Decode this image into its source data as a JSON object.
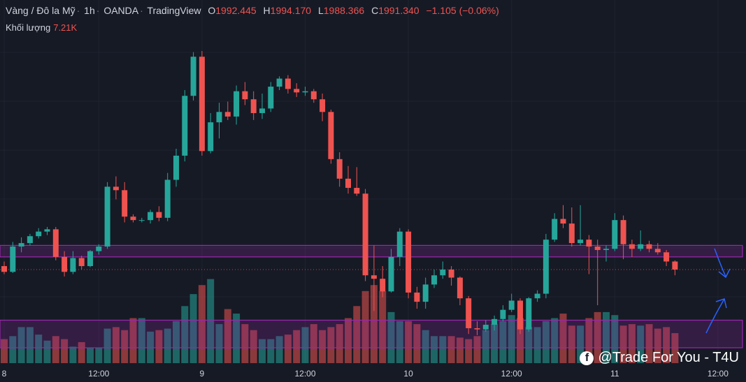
{
  "header": {
    "symbol": "Vàng / Đô la Mỹ",
    "interval": "1h",
    "broker": "OANDA",
    "source": "TradingView",
    "open_label": "O",
    "open": "1992.445",
    "high_label": "H",
    "high": "1994.170",
    "low_label": "L",
    "low": "1988.366",
    "close_label": "C",
    "close": "1991.340",
    "change": "−1.105 (−0.06%)"
  },
  "volume": {
    "label": "Khối lượng",
    "value": "7.21K"
  },
  "watermark": {
    "text": "@Trade For You - T4U",
    "icon": "facebook-icon"
  },
  "colors": {
    "up": "#26a69a",
    "down": "#ef5350",
    "zone": "#9c27b0",
    "arrow": "#2962ff",
    "background": "#161a25"
  },
  "chart_data": {
    "type": "candlestick",
    "x_tick_labels": [
      "8",
      "12:00",
      "9",
      "12:00",
      "10",
      "12:00",
      "11",
      "12:00"
    ],
    "x_tick_index": [
      0,
      11,
      23,
      35,
      47,
      59,
      71,
      83
    ],
    "ohlc": [
      [
        1991.6,
        1992.0,
        1990.9,
        1991.1
      ],
      [
        1991.1,
        1993.7,
        1991.0,
        1993.3
      ],
      [
        1993.3,
        1994.1,
        1992.8,
        1993.6
      ],
      [
        1993.6,
        1994.4,
        1993.4,
        1994.2
      ],
      [
        1994.2,
        1994.9,
        1994.0,
        1994.6
      ],
      [
        1994.6,
        1995.0,
        1994.3,
        1994.8
      ],
      [
        1994.8,
        1995.0,
        1992.1,
        1992.4
      ],
      [
        1992.4,
        1992.9,
        1990.7,
        1991.1
      ],
      [
        1991.1,
        1992.9,
        1990.9,
        1992.3
      ],
      [
        1992.3,
        1992.5,
        1991.3,
        1991.6
      ],
      [
        1991.6,
        1993.0,
        1991.5,
        1992.9
      ],
      [
        1992.9,
        1993.5,
        1992.6,
        1993.3
      ],
      [
        1993.3,
        1998.9,
        1993.1,
        1998.5
      ],
      [
        1998.5,
        1999.4,
        1997.4,
        1998.2
      ],
      [
        1998.2,
        1998.9,
        1995.4,
        1995.9
      ],
      [
        1995.9,
        1996.1,
        1995.4,
        1995.6
      ],
      [
        1995.6,
        1995.8,
        1995.4,
        1995.6
      ],
      [
        1995.6,
        1996.5,
        1995.3,
        1996.3
      ],
      [
        1996.3,
        1996.8,
        1995.5,
        1995.8
      ],
      [
        1995.8,
        1999.7,
        1995.5,
        1999.1
      ],
      [
        1999.1,
        2001.8,
        1998.5,
        2001.2
      ],
      [
        2001.2,
        2006.9,
        2000.7,
        2006.4
      ],
      [
        2006.4,
        2010.2,
        2006.0,
        2009.8
      ],
      [
        2009.8,
        2010.3,
        2001.2,
        2001.6
      ],
      [
        2001.6,
        2004.9,
        2001.4,
        2004.1
      ],
      [
        2004.1,
        2005.8,
        2002.7,
        2005.0
      ],
      [
        2005.0,
        2005.9,
        2004.3,
        2004.6
      ],
      [
        2004.6,
        2007.3,
        2003.9,
        2006.8
      ],
      [
        2006.8,
        2007.6,
        2005.6,
        2006.1
      ],
      [
        2006.1,
        2006.8,
        2004.3,
        2004.9
      ],
      [
        2004.9,
        2006.6,
        2004.4,
        2005.3
      ],
      [
        2005.3,
        2007.6,
        2005.0,
        2007.2
      ],
      [
        2007.2,
        2008.1,
        2006.9,
        2007.9
      ],
      [
        2007.9,
        2008.2,
        2006.6,
        2007.0
      ],
      [
        2007.0,
        2007.5,
        2006.3,
        2006.7
      ],
      [
        2006.7,
        2007.2,
        2006.4,
        2006.8
      ],
      [
        2006.8,
        2007.0,
        2005.8,
        2006.1
      ],
      [
        2006.1,
        2006.6,
        2004.2,
        2005.0
      ],
      [
        2005.0,
        2005.2,
        2000.5,
        2000.9
      ],
      [
        2000.9,
        2001.5,
        1998.5,
        1999.2
      ],
      [
        1999.2,
        2000.3,
        1997.9,
        1998.4
      ],
      [
        1998.4,
        2000.2,
        1997.7,
        1997.9
      ],
      [
        1997.9,
        1998.3,
        1990.3,
        1990.8
      ],
      [
        1990.8,
        1993.4,
        1987.7,
        1990.5
      ],
      [
        1990.5,
        1991.6,
        1988.9,
        1989.4
      ],
      [
        1989.4,
        1993.1,
        1989.3,
        1992.4
      ],
      [
        1992.4,
        1994.9,
        1991.6,
        1994.6
      ],
      [
        1994.6,
        1994.8,
        1988.8,
        1989.3
      ],
      [
        1989.3,
        1989.8,
        1987.9,
        1988.5
      ],
      [
        1988.5,
        1990.6,
        1987.9,
        1990.0
      ],
      [
        1990.0,
        1991.3,
        1989.7,
        1990.8
      ],
      [
        1990.8,
        1992.0,
        1990.5,
        1991.3
      ],
      [
        1991.3,
        1991.6,
        1989.9,
        1990.6
      ],
      [
        1990.6,
        1990.7,
        1988.2,
        1988.8
      ],
      [
        1988.8,
        1989.0,
        1985.7,
        1986.2
      ],
      [
        1986.2,
        1986.8,
        1985.6,
        1986.1
      ],
      [
        1986.1,
        1986.9,
        1985.9,
        1986.5
      ],
      [
        1986.5,
        1987.3,
        1986.0,
        1987.0
      ],
      [
        1987.0,
        1988.2,
        1986.8,
        1987.8
      ],
      [
        1987.8,
        1989.2,
        1987.6,
        1988.6
      ],
      [
        1988.6,
        1988.8,
        1985.7,
        1986.1
      ],
      [
        1986.1,
        1988.9,
        1985.9,
        1988.8
      ],
      [
        1988.8,
        1989.5,
        1988.5,
        1989.2
      ],
      [
        1989.2,
        1994.4,
        1988.8,
        1993.9
      ],
      [
        1993.9,
        1996.2,
        1993.7,
        1995.7
      ],
      [
        1995.7,
        1996.9,
        1994.9,
        1995.3
      ],
      [
        1995.3,
        1996.7,
        1993.3,
        1993.6
      ],
      [
        1993.6,
        1996.9,
        1993.4,
        1993.9
      ],
      [
        1993.9,
        1994.3,
        1990.9,
        1993.3
      ],
      [
        1993.3,
        1993.9,
        1988.2,
        1993.0
      ],
      [
        1993.0,
        1993.4,
        1992.0,
        1993.1
      ],
      [
        1993.1,
        1996.2,
        1992.9,
        1995.6
      ],
      [
        1995.6,
        1996.0,
        1992.2,
        1993.5
      ],
      [
        1993.5,
        1993.9,
        1992.4,
        1993.1
      ],
      [
        1993.1,
        1994.7,
        1992.9,
        1993.5
      ],
      [
        1993.5,
        1993.8,
        1992.8,
        1993.1
      ],
      [
        1993.1,
        1993.6,
        1992.6,
        1992.8
      ],
      [
        1992.8,
        1993.0,
        1991.6,
        1992.0
      ],
      [
        1992.0,
        1992.1,
        1990.8,
        1991.3
      ]
    ],
    "volume": [
      80,
      90,
      120,
      120,
      95,
      75,
      90,
      80,
      55,
      70,
      50,
      50,
      115,
      120,
      110,
      150,
      150,
      105,
      110,
      115,
      140,
      190,
      230,
      260,
      280,
      130,
      180,
      165,
      130,
      110,
      80,
      80,
      90,
      95,
      110,
      120,
      130,
      110,
      120,
      130,
      150,
      190,
      240,
      260,
      240,
      170,
      140,
      140,
      130,
      110,
      90,
      90,
      90,
      85,
      80,
      90,
      110,
      130,
      140,
      160,
      150,
      120,
      120,
      140,
      150,
      165,
      125,
      125,
      150,
      170,
      170,
      160,
      125,
      130,
      125,
      130,
      115,
      120,
      100
    ],
    "price_range": [
      1984.5,
      2012.0
    ],
    "zones": [
      {
        "name": "upper-zone",
        "from": 1992.4,
        "to": 1993.4
      },
      {
        "name": "lower-zone",
        "from": 1984.5,
        "to": 1986.9
      }
    ],
    "current_price_line": 1991.3,
    "annotations": [
      "down-arrow",
      "up-arrow"
    ]
  }
}
